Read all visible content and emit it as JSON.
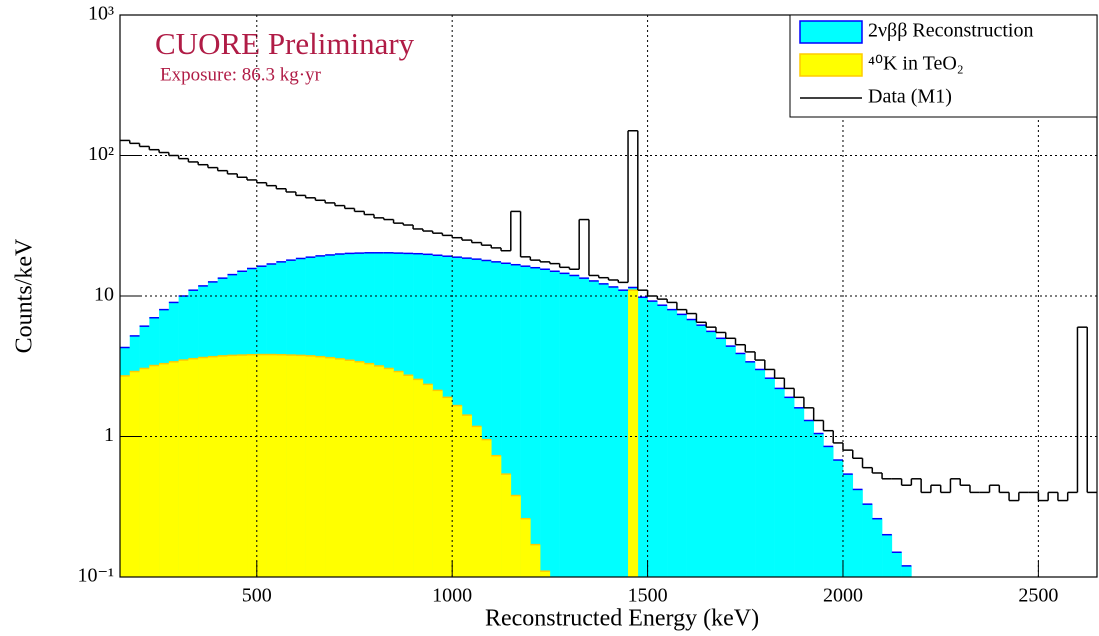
{
  "chart_data": {
    "type": "histogram",
    "annotations": [
      "CUORE Preliminary",
      "Exposure: 86.3 kg·yr"
    ],
    "x_label": "Reconstructed Energy (keV)",
    "y_label": "Counts/keV",
    "log_y": true,
    "grid": true,
    "legend": "upper right",
    "xlim": [
      150,
      2650
    ],
    "xticks": [
      500,
      1000,
      1500,
      2000,
      2500
    ],
    "ylim": [
      0.1,
      1000
    ],
    "yticks": [
      {
        "value": 0.1,
        "label": "10⁻¹"
      },
      1,
      10,
      {
        "value": 100,
        "label": "10²"
      },
      {
        "value": 1000,
        "label": "10³"
      }
    ],
    "bins": [
      150,
      175,
      200,
      225,
      250,
      275,
      300,
      325,
      350,
      375,
      400,
      425,
      450,
      475,
      500,
      525,
      550,
      575,
      600,
      625,
      650,
      675,
      700,
      725,
      750,
      775,
      800,
      825,
      850,
      875,
      900,
      925,
      950,
      975,
      1000,
      1025,
      1050,
      1075,
      1100,
      1125,
      1150,
      1175,
      1200,
      1225,
      1250,
      1275,
      1300,
      1325,
      1350,
      1375,
      1400,
      1425,
      1450,
      1475,
      1500,
      1525,
      1550,
      1575,
      1600,
      1625,
      1650,
      1675,
      1700,
      1725,
      1750,
      1775,
      1800,
      1825,
      1850,
      1875,
      1900,
      1925,
      1950,
      1975,
      2000,
      2025,
      2050,
      2075,
      2100,
      2125,
      2150,
      2175,
      2200,
      2225,
      2250,
      2275,
      2300,
      2325,
      2350,
      2375,
      2400,
      2425,
      2450,
      2475,
      2500,
      2525,
      2550,
      2575,
      2600,
      2625,
      2650
    ],
    "series": [
      {
        "name": "2νββ Reconstruction",
        "style": "fill",
        "color": "#00ffff",
        "edge_color": "#0000ff",
        "values": [
          4.3,
          5.2,
          6.1,
          7,
          8,
          9,
          10,
          11,
          11.8,
          12.6,
          13.4,
          14.2,
          15,
          15.7,
          16.3,
          16.9,
          17.5,
          18,
          18.5,
          18.9,
          19.3,
          19.6,
          19.9,
          20.1,
          20.2,
          20.3,
          20.3,
          20.3,
          20.2,
          20.1,
          20,
          19.8,
          19.5,
          19.2,
          18.9,
          18.6,
          18.3,
          17.9,
          17.5,
          17.1,
          16.7,
          16.3,
          15.9,
          15.5,
          15,
          14.5,
          14,
          13.4,
          12.8,
          12.2,
          11.6,
          11,
          11.5,
          9.8,
          9.2,
          8.6,
          8,
          7.4,
          6.8,
          6.2,
          5.6,
          5,
          4.4,
          3.9,
          3.4,
          3,
          2.6,
          2.2,
          1.9,
          1.6,
          1.3,
          1.05,
          0.85,
          0.68,
          0.54,
          0.42,
          0.33,
          0.26,
          0.2,
          0.15,
          0.12,
          0,
          0,
          0,
          0,
          0,
          0,
          0,
          0,
          0,
          0,
          0,
          0,
          0,
          0,
          0,
          0,
          0,
          0,
          0
        ]
      },
      {
        "name": "⁴⁰K in TeO₂",
        "style": "fill",
        "color": "#ffff00",
        "edge_color": "#ffcc00",
        "values": [
          2.7,
          2.9,
          3.05,
          3.2,
          3.3,
          3.4,
          3.5,
          3.58,
          3.65,
          3.7,
          3.75,
          3.78,
          3.8,
          3.82,
          3.83,
          3.83,
          3.82,
          3.8,
          3.78,
          3.75,
          3.7,
          3.64,
          3.57,
          3.49,
          3.4,
          3.3,
          3.18,
          3.05,
          2.9,
          2.73,
          2.55,
          2.35,
          2.13,
          1.9,
          1.66,
          1.42,
          1.18,
          0.95,
          0.73,
          0.54,
          0.38,
          0.26,
          0.17,
          0.11,
          0,
          0,
          0,
          0,
          0,
          0,
          0,
          0,
          11,
          0,
          0,
          0,
          0,
          0,
          0,
          0,
          0,
          0,
          0,
          0,
          0,
          0,
          0,
          0,
          0,
          0,
          0,
          0,
          0,
          0,
          0,
          0,
          0,
          0,
          0,
          0,
          0,
          0,
          0,
          0,
          0,
          0,
          0,
          0,
          0,
          0,
          0,
          0,
          0,
          0,
          0,
          0,
          0,
          0,
          0,
          0
        ]
      },
      {
        "name": "Data (M1)",
        "style": "step",
        "color": "#000000",
        "values": [
          128,
          122,
          116,
          110,
          105,
          100,
          95,
          90,
          86,
          82,
          78,
          74,
          70,
          67,
          64,
          61,
          58,
          55,
          52,
          50,
          48,
          46,
          44,
          42,
          40,
          38,
          36,
          35,
          33,
          32,
          30,
          29,
          28,
          27,
          26,
          25,
          24,
          23,
          22,
          21,
          40,
          19,
          18,
          17.5,
          17,
          16,
          15.5,
          35,
          14,
          13.5,
          13,
          12.5,
          150,
          11,
          10,
          9.5,
          9,
          8,
          7.5,
          6.5,
          6,
          5.5,
          5,
          4.5,
          4,
          3.5,
          3,
          2.6,
          2.2,
          1.9,
          1.6,
          1.3,
          1.1,
          0.9,
          0.8,
          0.7,
          0.6,
          0.55,
          0.5,
          0.5,
          0.45,
          0.5,
          0.4,
          0.45,
          0.4,
          0.5,
          0.45,
          0.4,
          0.4,
          0.45,
          0.4,
          0.35,
          0.4,
          0.4,
          0.35,
          0.4,
          0.35,
          0.4,
          6,
          0.4
        ]
      }
    ]
  }
}
